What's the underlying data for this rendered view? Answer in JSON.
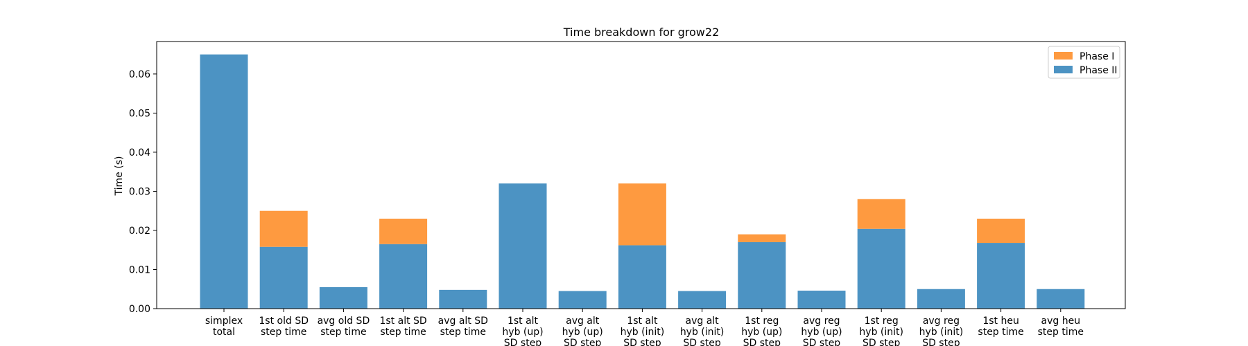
{
  "chart_data": {
    "type": "bar",
    "stacked": true,
    "title": "Time breakdown for grow22",
    "xlabel": "",
    "ylabel": "Time (s)",
    "ylim": [
      0,
      0.0683
    ],
    "yticks": [
      "0.00",
      "0.01",
      "0.02",
      "0.03",
      "0.04",
      "0.05",
      "0.06"
    ],
    "grid": false,
    "legend_position": "top-right",
    "categories": [
      [
        "simplex",
        "total"
      ],
      [
        "1st old SD",
        "step time"
      ],
      [
        "avg old SD",
        "step time"
      ],
      [
        "1st alt SD",
        "step time"
      ],
      [
        "avg alt SD",
        "step time"
      ],
      [
        "1st alt",
        "hyb (up)",
        "SD step"
      ],
      [
        "avg alt",
        "hyb (up)",
        "SD step"
      ],
      [
        "1st alt",
        "hyb (init)",
        "SD step"
      ],
      [
        "avg alt",
        "hyb (init)",
        "SD step"
      ],
      [
        "1st reg",
        "hyb (up)",
        "SD step"
      ],
      [
        "avg reg",
        "hyb (up)",
        "SD step"
      ],
      [
        "1st reg",
        "hyb (init)",
        "SD step"
      ],
      [
        "avg reg",
        "hyb (init)",
        "SD step"
      ],
      [
        "1st heu",
        "step time"
      ],
      [
        "avg heu",
        "step time"
      ]
    ],
    "series": [
      {
        "name": "Phase II",
        "color": "#4c93c3",
        "values": [
          0.065,
          0.0158,
          0.0055,
          0.0165,
          0.0048,
          0.032,
          0.0045,
          0.0162,
          0.0045,
          0.017,
          0.0046,
          0.0204,
          0.005,
          0.0168,
          0.005
        ]
      },
      {
        "name": "Phase I",
        "color": "#fe9a40",
        "values": [
          0,
          0.0092,
          0,
          0.0065,
          0,
          0,
          0,
          0.0158,
          0,
          0.002,
          0,
          0.0076,
          0,
          0.0062,
          0
        ]
      }
    ],
    "legend_order": [
      "Phase I",
      "Phase II"
    ]
  }
}
